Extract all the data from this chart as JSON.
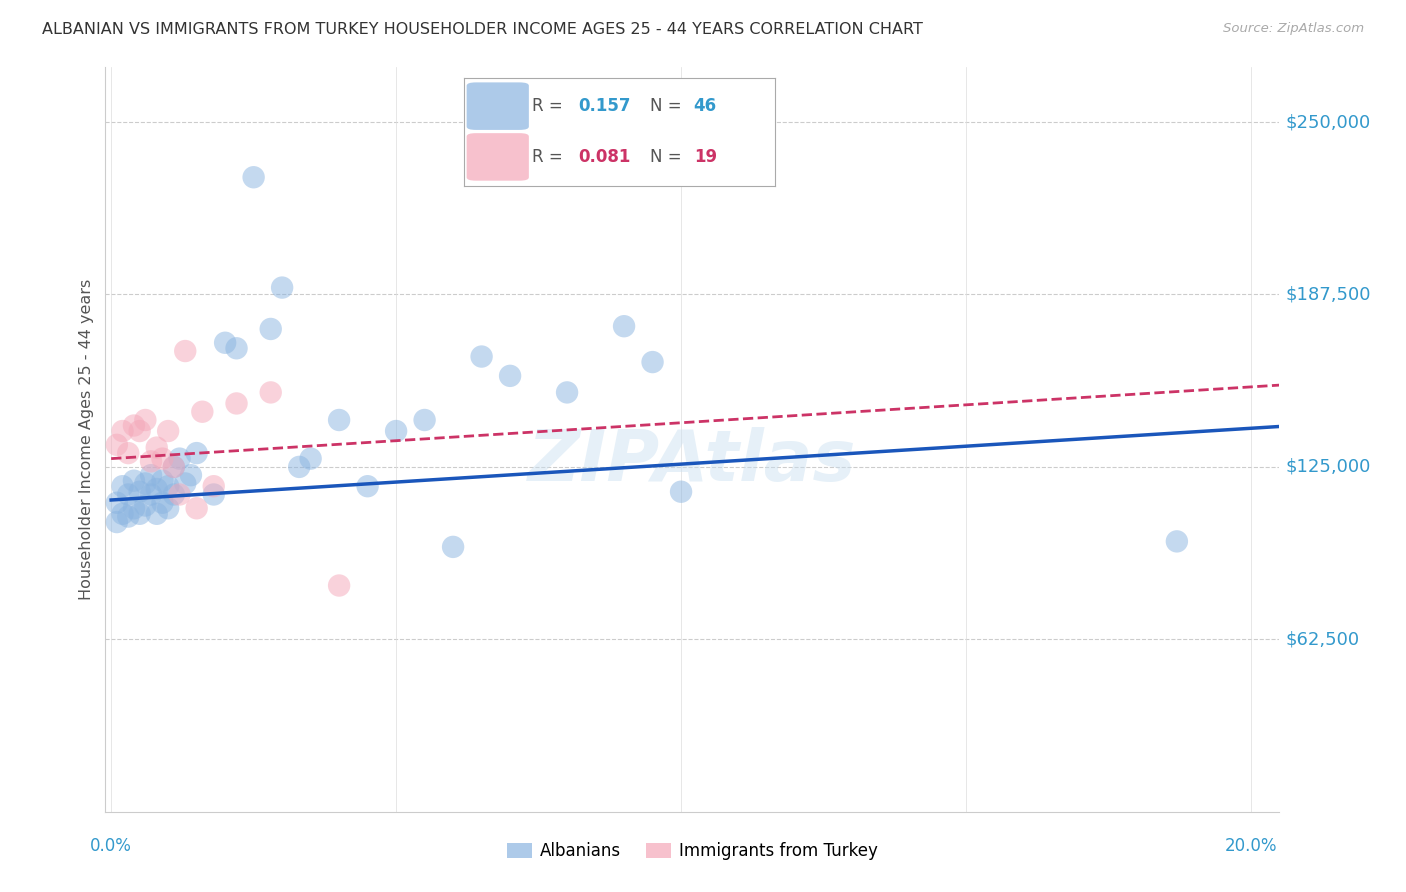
{
  "title": "ALBANIAN VS IMMIGRANTS FROM TURKEY HOUSEHOLDER INCOME AGES 25 - 44 YEARS CORRELATION CHART",
  "source": "Source: ZipAtlas.com",
  "ylabel": "Householder Income Ages 25 - 44 years",
  "ytick_values": [
    250000,
    187500,
    125000,
    62500
  ],
  "ytick_labels": [
    "$250,000",
    "$187,500",
    "$125,000",
    "$62,500"
  ],
  "ymin": 0,
  "ymax": 270000,
  "xmin": -0.001,
  "xmax": 0.205,
  "legend_label1": "Albanians",
  "legend_label2": "Immigrants from Turkey",
  "r1_str": "0.157",
  "n1_str": "46",
  "r2_str": "0.081",
  "n2_str": "19",
  "albanian_color": "#8ab4e0",
  "turkey_color": "#f4a7b9",
  "line1_color": "#1a56bb",
  "line2_color": "#cc3366",
  "albanian_x": [
    0.001,
    0.001,
    0.002,
    0.002,
    0.003,
    0.003,
    0.004,
    0.004,
    0.005,
    0.005,
    0.006,
    0.006,
    0.007,
    0.007,
    0.008,
    0.008,
    0.009,
    0.009,
    0.01,
    0.01,
    0.011,
    0.011,
    0.012,
    0.013,
    0.014,
    0.015,
    0.018,
    0.02,
    0.022,
    0.025,
    0.028,
    0.03,
    0.033,
    0.035,
    0.04,
    0.045,
    0.05,
    0.055,
    0.06,
    0.065,
    0.07,
    0.08,
    0.09,
    0.095,
    0.1,
    0.187
  ],
  "albanian_y": [
    112000,
    105000,
    118000,
    108000,
    115000,
    107000,
    120000,
    110000,
    116000,
    108000,
    119000,
    111000,
    122000,
    115000,
    117000,
    108000,
    120000,
    112000,
    118000,
    110000,
    125000,
    115000,
    128000,
    119000,
    122000,
    130000,
    115000,
    170000,
    168000,
    230000,
    175000,
    190000,
    125000,
    128000,
    142000,
    118000,
    138000,
    142000,
    96000,
    165000,
    158000,
    152000,
    176000,
    163000,
    116000,
    98000
  ],
  "turkey_x": [
    0.001,
    0.002,
    0.003,
    0.004,
    0.005,
    0.006,
    0.007,
    0.008,
    0.009,
    0.01,
    0.011,
    0.012,
    0.013,
    0.015,
    0.016,
    0.018,
    0.022,
    0.028,
    0.04
  ],
  "turkey_y": [
    133000,
    138000,
    130000,
    140000,
    138000,
    142000,
    127000,
    132000,
    128000,
    138000,
    125000,
    115000,
    167000,
    110000,
    145000,
    118000,
    148000,
    152000,
    82000
  ],
  "watermark": "ZIPAtlas"
}
